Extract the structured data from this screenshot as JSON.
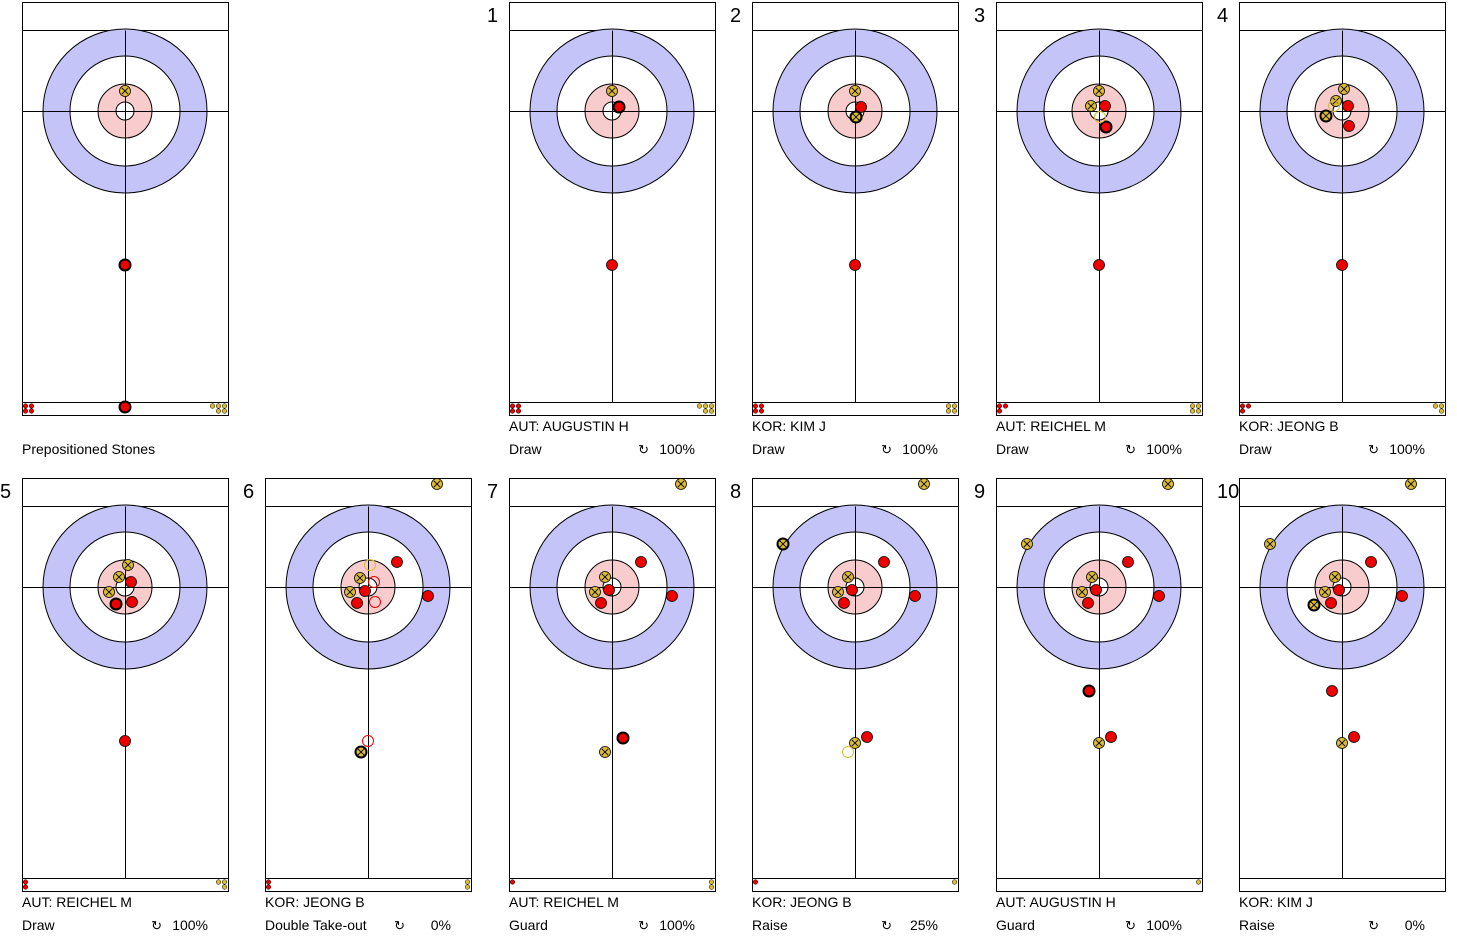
{
  "colors": {
    "red": "#ee0000",
    "yellow": "#ddbb33",
    "ring12": "#c4c4f8",
    "ring4": "#f8cccc",
    "line": "#000000"
  },
  "icon": "↻",
  "panels": [
    {
      "number": "",
      "player": "",
      "shot": "",
      "percent": "",
      "caption": "Prepositioned Stones",
      "stones": [
        {
          "team": "yellow",
          "x": 0,
          "y": -20
        },
        {
          "team": "red",
          "x": 0,
          "y": 154,
          "last": true
        },
        {
          "team": "red",
          "x": 0,
          "y": 296,
          "last": true
        }
      ],
      "leftDots": {
        "team": "red",
        "count": 4
      },
      "rightDots": {
        "team": "yellow",
        "count": 5
      }
    },
    {
      "number": "1",
      "player": "AUT: AUGUSTIN H",
      "shot": "Draw",
      "percent": "100%",
      "stones": [
        {
          "team": "yellow",
          "x": 0,
          "y": -20
        },
        {
          "team": "red",
          "x": 7,
          "y": -4,
          "last": true
        },
        {
          "team": "red",
          "x": 0,
          "y": 154
        }
      ],
      "leftDots": {
        "team": "red",
        "count": 4
      },
      "rightDots": {
        "team": "yellow",
        "count": 5
      }
    },
    {
      "number": "2",
      "player": "KOR: KIM J",
      "shot": "Draw",
      "percent": "100%",
      "stones": [
        {
          "team": "yellow",
          "x": 0,
          "y": -20
        },
        {
          "team": "red",
          "x": 6,
          "y": -4
        },
        {
          "team": "yellow",
          "x": 1,
          "y": 6,
          "last": true
        },
        {
          "team": "red",
          "x": 0,
          "y": 154
        }
      ],
      "leftDots": {
        "team": "red",
        "count": 4
      },
      "rightDots": {
        "team": "yellow",
        "count": 4
      }
    },
    {
      "number": "3",
      "player": "AUT: REICHEL M",
      "shot": "Draw",
      "percent": "100%",
      "stones": [
        {
          "team": "yellow",
          "x": 0,
          "y": -20
        },
        {
          "team": "yellow",
          "x": -8,
          "y": -5
        },
        {
          "team": "red",
          "x": 6,
          "y": -5
        },
        {
          "team": "red",
          "x": 7,
          "y": 16,
          "last": true
        },
        {
          "team": "yellow",
          "x": 1,
          "y": 6,
          "ghost": true
        },
        {
          "team": "red",
          "x": 0,
          "y": 154
        }
      ],
      "leftDots": {
        "team": "red",
        "count": 3
      },
      "rightDots": {
        "team": "yellow",
        "count": 4
      }
    },
    {
      "number": "4",
      "player": "KOR: JEONG B",
      "shot": "Draw",
      "percent": "100%",
      "stones": [
        {
          "team": "yellow",
          "x": 2,
          "y": -22
        },
        {
          "team": "yellow",
          "x": -6,
          "y": -10
        },
        {
          "team": "red",
          "x": 6,
          "y": -5
        },
        {
          "team": "yellow",
          "x": -16,
          "y": 5,
          "last": true
        },
        {
          "team": "red",
          "x": 7,
          "y": 15
        },
        {
          "team": "yellow",
          "x": -8,
          "y": -5,
          "ghost": true
        },
        {
          "team": "red",
          "x": 0,
          "y": 154
        }
      ],
      "leftDots": {
        "team": "red",
        "count": 3
      },
      "rightDots": {
        "team": "yellow",
        "count": 3
      }
    },
    {
      "number": "5",
      "player": "AUT: REICHEL M",
      "shot": "Draw",
      "percent": "100%",
      "stones": [
        {
          "team": "yellow",
          "x": 3,
          "y": -22
        },
        {
          "team": "yellow",
          "x": -6,
          "y": -10
        },
        {
          "team": "red",
          "x": 6,
          "y": -5
        },
        {
          "team": "yellow",
          "x": -16,
          "y": 5
        },
        {
          "team": "red",
          "x": 7,
          "y": 15
        },
        {
          "team": "red",
          "x": -9,
          "y": 17,
          "last": true
        },
        {
          "team": "red",
          "x": 0,
          "y": 154
        }
      ],
      "leftDots": {
        "team": "red",
        "count": 2
      },
      "rightDots": {
        "team": "yellow",
        "count": 3
      }
    },
    {
      "number": "6",
      "player": "KOR: JEONG B",
      "shot": "Double Take-out",
      "percent": "0%",
      "stones": [
        {
          "team": "yellow",
          "x": 69,
          "y": -103
        },
        {
          "team": "red",
          "x": 29,
          "y": -25
        },
        {
          "team": "yellow",
          "x": -8,
          "y": -9
        },
        {
          "team": "yellow",
          "x": -18,
          "y": 5
        },
        {
          "team": "red",
          "x": -3,
          "y": 4
        },
        {
          "team": "red",
          "x": -11,
          "y": 16
        },
        {
          "team": "red",
          "x": 60,
          "y": 9
        },
        {
          "team": "yellow",
          "x": -7,
          "y": 165,
          "last": true
        },
        {
          "team": "yellow",
          "x": 2,
          "y": -22,
          "ghost": true
        },
        {
          "team": "red",
          "x": 6,
          "y": -5,
          "ghost": true
        },
        {
          "team": "red",
          "x": 7,
          "y": 15,
          "ghost": true
        },
        {
          "team": "red",
          "x": 0,
          "y": 154,
          "ghost": true
        }
      ],
      "leftDots": {
        "team": "red",
        "count": 2
      },
      "rightDots": {
        "team": "yellow",
        "count": 2
      }
    },
    {
      "number": "7",
      "player": "AUT: REICHEL M",
      "shot": "Guard",
      "percent": "100%",
      "stones": [
        {
          "team": "yellow",
          "x": 69,
          "y": -103
        },
        {
          "team": "red",
          "x": 29,
          "y": -25
        },
        {
          "team": "yellow",
          "x": -7,
          "y": -10
        },
        {
          "team": "yellow",
          "x": -17,
          "y": 5
        },
        {
          "team": "red",
          "x": -3,
          "y": 3
        },
        {
          "team": "red",
          "x": -11,
          "y": 16
        },
        {
          "team": "red",
          "x": 60,
          "y": 9
        },
        {
          "team": "yellow",
          "x": -7,
          "y": 165
        },
        {
          "team": "red",
          "x": 11,
          "y": 151,
          "last": true
        }
      ],
      "leftDots": {
        "team": "red",
        "count": 1
      },
      "rightDots": {
        "team": "yellow",
        "count": 2
      }
    },
    {
      "number": "8",
      "player": "KOR: JEONG B",
      "shot": "Raise",
      "percent": "25%",
      "stones": [
        {
          "team": "yellow",
          "x": 69,
          "y": -103
        },
        {
          "team": "yellow",
          "x": -72,
          "y": -43,
          "last": true
        },
        {
          "team": "red",
          "x": 29,
          "y": -25
        },
        {
          "team": "yellow",
          "x": -7,
          "y": -10
        },
        {
          "team": "yellow",
          "x": -17,
          "y": 5
        },
        {
          "team": "red",
          "x": -3,
          "y": 3
        },
        {
          "team": "red",
          "x": -11,
          "y": 16
        },
        {
          "team": "red",
          "x": 60,
          "y": 9
        },
        {
          "team": "yellow",
          "x": 0,
          "y": 156
        },
        {
          "team": "red",
          "x": 12,
          "y": 150
        },
        {
          "team": "yellow",
          "x": -7,
          "y": 165,
          "ghost": true
        }
      ],
      "leftDots": {
        "team": "red",
        "count": 1
      },
      "rightDots": {
        "team": "yellow",
        "count": 1
      }
    },
    {
      "number": "9",
      "player": "AUT: AUGUSTIN H",
      "shot": "Guard",
      "percent": "100%",
      "stones": [
        {
          "team": "yellow",
          "x": 69,
          "y": -103
        },
        {
          "team": "yellow",
          "x": -72,
          "y": -43
        },
        {
          "team": "red",
          "x": 29,
          "y": -25
        },
        {
          "team": "yellow",
          "x": -7,
          "y": -10
        },
        {
          "team": "yellow",
          "x": -17,
          "y": 5
        },
        {
          "team": "red",
          "x": -3,
          "y": 3
        },
        {
          "team": "red",
          "x": -11,
          "y": 16
        },
        {
          "team": "red",
          "x": 60,
          "y": 9
        },
        {
          "team": "red",
          "x": -10,
          "y": 104,
          "last": true
        },
        {
          "team": "yellow",
          "x": 0,
          "y": 156
        },
        {
          "team": "red",
          "x": 12,
          "y": 150
        }
      ],
      "leftDots": {
        "team": "red",
        "count": 0
      },
      "rightDots": {
        "team": "yellow",
        "count": 1
      }
    },
    {
      "number": "10",
      "player": "KOR: KIM J",
      "shot": "Raise",
      "percent": "0%",
      "stones": [
        {
          "team": "yellow",
          "x": 69,
          "y": -103
        },
        {
          "team": "yellow",
          "x": -72,
          "y": -43
        },
        {
          "team": "red",
          "x": 29,
          "y": -25
        },
        {
          "team": "yellow",
          "x": -7,
          "y": -10
        },
        {
          "team": "yellow",
          "x": -17,
          "y": 5
        },
        {
          "team": "red",
          "x": -3,
          "y": 3
        },
        {
          "team": "red",
          "x": -11,
          "y": 16
        },
        {
          "team": "red",
          "x": 60,
          "y": 9
        },
        {
          "team": "yellow",
          "x": -28,
          "y": 18,
          "last": true
        },
        {
          "team": "red",
          "x": -10,
          "y": 104
        },
        {
          "team": "yellow",
          "x": 0,
          "y": 156
        },
        {
          "team": "red",
          "x": 12,
          "y": 150
        }
      ],
      "leftDots": {
        "team": "red",
        "count": 0
      },
      "rightDots": {
        "team": "yellow",
        "count": 0
      }
    }
  ]
}
